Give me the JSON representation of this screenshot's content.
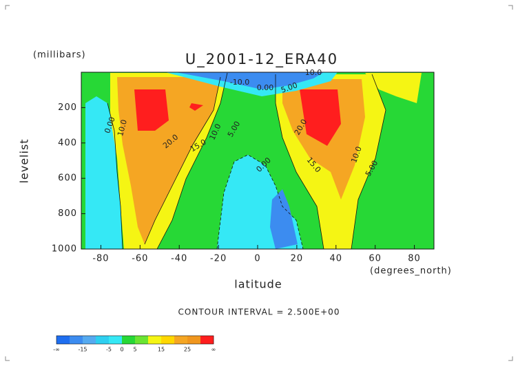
{
  "chart_data": {
    "type": "contour",
    "title": "U_2001-12_ERA40",
    "y_units": "(millibars)",
    "y_label": "levelist",
    "x_label": "latitude",
    "x_units": "(degrees_north)",
    "footnote": "CONTOUR INTERVAL = 2.500E+00",
    "xlim": [
      -90,
      90
    ],
    "xticks": [
      -80,
      -60,
      -40,
      -20,
      0,
      20,
      40,
      60,
      80
    ],
    "ylim": [
      0,
      1000
    ],
    "y_inverted": true,
    "yticks": [
      200,
      400,
      600,
      800,
      1000
    ],
    "contour_labels": [
      "0.00",
      "10.0",
      "20.0",
      "15.0",
      "10.0",
      "5.00",
      "0.00",
      "20.0",
      "15.0",
      "10.0",
      "5.00",
      "-10.0",
      "0.00",
      "5.00",
      "10.0"
    ],
    "colorbar": {
      "colors": [
        "#1e6ef0",
        "#3c8cf0",
        "#55aaf0",
        "#2ecff0",
        "#35e8f5",
        "#27d836",
        "#6ae432",
        "#f5f514",
        "#ffd700",
        "#f5a623",
        "#f0961e",
        "#ff1e1e"
      ],
      "ticks": [
        "-∞",
        -15,
        -5,
        0,
        5,
        15,
        25,
        "∞"
      ]
    }
  }
}
